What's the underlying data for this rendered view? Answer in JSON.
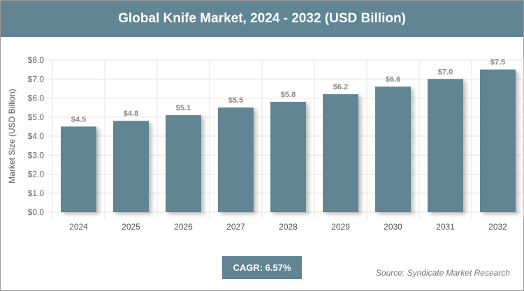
{
  "chart_data": {
    "type": "bar",
    "title": "Global Knife Market, 2024 - 2032 (USD Billion)",
    "categories": [
      "2024",
      "2025",
      "2026",
      "2027",
      "2028",
      "2029",
      "2030",
      "2031",
      "2032"
    ],
    "values": [
      4.5,
      4.8,
      5.1,
      5.5,
      5.8,
      6.2,
      6.6,
      7.0,
      7.5
    ],
    "data_labels": [
      "$4.5",
      "$4.8",
      "$5.1",
      "$5.5",
      "$5.8",
      "$6.2",
      "$6.6",
      "$7.0",
      "$7.5"
    ],
    "xlabel": "",
    "ylabel": "Market Size (USD Billion)",
    "ylim": [
      0,
      8
    ],
    "yticks": [
      0,
      1,
      2,
      3,
      4,
      5,
      6,
      7,
      8
    ],
    "ytick_labels": [
      "$0.0",
      "$1.0",
      "$2.0",
      "$3.0",
      "$4.0",
      "$5.0",
      "$6.0",
      "$7.0",
      "$8.0"
    ],
    "grid": true,
    "bar_color": "#628594"
  },
  "cagr": "CAGR: 6.57%",
  "source": "Source: Syndicate Market Research"
}
